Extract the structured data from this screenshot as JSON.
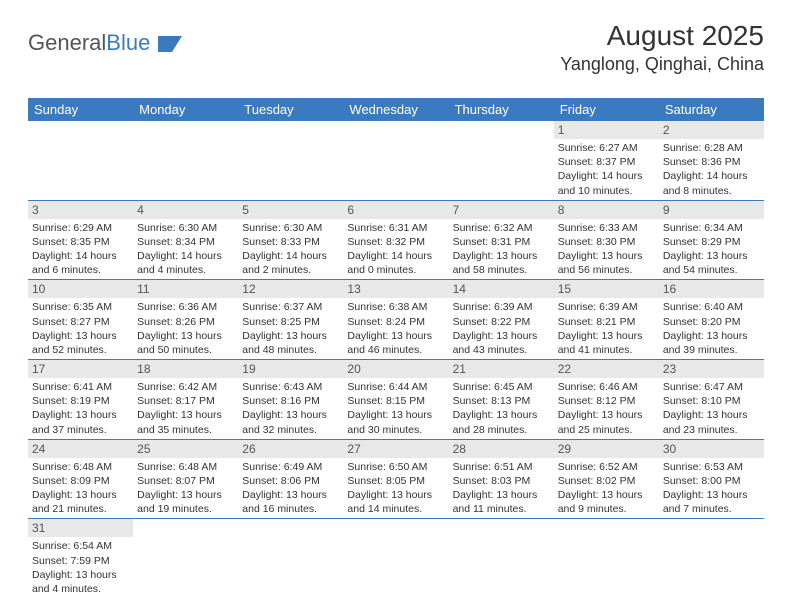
{
  "logo": {
    "text1": "General",
    "text2": "Blue"
  },
  "title": "August 2025",
  "location": "Yanglong, Qinghai, China",
  "colors": {
    "header_bg": "#3a7bbf",
    "header_fg": "#ffffff",
    "daynum_bg": "#e8e8e8",
    "border": "#3a7bbf",
    "text": "#333333"
  },
  "weekdays": [
    "Sunday",
    "Monday",
    "Tuesday",
    "Wednesday",
    "Thursday",
    "Friday",
    "Saturday"
  ],
  "weeks": [
    [
      null,
      null,
      null,
      null,
      null,
      {
        "n": "1",
        "sr": "6:27 AM",
        "ss": "8:37 PM",
        "dl": "14 hours and 10 minutes."
      },
      {
        "n": "2",
        "sr": "6:28 AM",
        "ss": "8:36 PM",
        "dl": "14 hours and 8 minutes."
      }
    ],
    [
      {
        "n": "3",
        "sr": "6:29 AM",
        "ss": "8:35 PM",
        "dl": "14 hours and 6 minutes."
      },
      {
        "n": "4",
        "sr": "6:30 AM",
        "ss": "8:34 PM",
        "dl": "14 hours and 4 minutes."
      },
      {
        "n": "5",
        "sr": "6:30 AM",
        "ss": "8:33 PM",
        "dl": "14 hours and 2 minutes."
      },
      {
        "n": "6",
        "sr": "6:31 AM",
        "ss": "8:32 PM",
        "dl": "14 hours and 0 minutes."
      },
      {
        "n": "7",
        "sr": "6:32 AM",
        "ss": "8:31 PM",
        "dl": "13 hours and 58 minutes."
      },
      {
        "n": "8",
        "sr": "6:33 AM",
        "ss": "8:30 PM",
        "dl": "13 hours and 56 minutes."
      },
      {
        "n": "9",
        "sr": "6:34 AM",
        "ss": "8:29 PM",
        "dl": "13 hours and 54 minutes."
      }
    ],
    [
      {
        "n": "10",
        "sr": "6:35 AM",
        "ss": "8:27 PM",
        "dl": "13 hours and 52 minutes."
      },
      {
        "n": "11",
        "sr": "6:36 AM",
        "ss": "8:26 PM",
        "dl": "13 hours and 50 minutes."
      },
      {
        "n": "12",
        "sr": "6:37 AM",
        "ss": "8:25 PM",
        "dl": "13 hours and 48 minutes."
      },
      {
        "n": "13",
        "sr": "6:38 AM",
        "ss": "8:24 PM",
        "dl": "13 hours and 46 minutes."
      },
      {
        "n": "14",
        "sr": "6:39 AM",
        "ss": "8:22 PM",
        "dl": "13 hours and 43 minutes."
      },
      {
        "n": "15",
        "sr": "6:39 AM",
        "ss": "8:21 PM",
        "dl": "13 hours and 41 minutes."
      },
      {
        "n": "16",
        "sr": "6:40 AM",
        "ss": "8:20 PM",
        "dl": "13 hours and 39 minutes."
      }
    ],
    [
      {
        "n": "17",
        "sr": "6:41 AM",
        "ss": "8:19 PM",
        "dl": "13 hours and 37 minutes."
      },
      {
        "n": "18",
        "sr": "6:42 AM",
        "ss": "8:17 PM",
        "dl": "13 hours and 35 minutes."
      },
      {
        "n": "19",
        "sr": "6:43 AM",
        "ss": "8:16 PM",
        "dl": "13 hours and 32 minutes."
      },
      {
        "n": "20",
        "sr": "6:44 AM",
        "ss": "8:15 PM",
        "dl": "13 hours and 30 minutes."
      },
      {
        "n": "21",
        "sr": "6:45 AM",
        "ss": "8:13 PM",
        "dl": "13 hours and 28 minutes."
      },
      {
        "n": "22",
        "sr": "6:46 AM",
        "ss": "8:12 PM",
        "dl": "13 hours and 25 minutes."
      },
      {
        "n": "23",
        "sr": "6:47 AM",
        "ss": "8:10 PM",
        "dl": "13 hours and 23 minutes."
      }
    ],
    [
      {
        "n": "24",
        "sr": "6:48 AM",
        "ss": "8:09 PM",
        "dl": "13 hours and 21 minutes."
      },
      {
        "n": "25",
        "sr": "6:48 AM",
        "ss": "8:07 PM",
        "dl": "13 hours and 19 minutes."
      },
      {
        "n": "26",
        "sr": "6:49 AM",
        "ss": "8:06 PM",
        "dl": "13 hours and 16 minutes."
      },
      {
        "n": "27",
        "sr": "6:50 AM",
        "ss": "8:05 PM",
        "dl": "13 hours and 14 minutes."
      },
      {
        "n": "28",
        "sr": "6:51 AM",
        "ss": "8:03 PM",
        "dl": "13 hours and 11 minutes."
      },
      {
        "n": "29",
        "sr": "6:52 AM",
        "ss": "8:02 PM",
        "dl": "13 hours and 9 minutes."
      },
      {
        "n": "30",
        "sr": "6:53 AM",
        "ss": "8:00 PM",
        "dl": "13 hours and 7 minutes."
      }
    ],
    [
      {
        "n": "31",
        "sr": "6:54 AM",
        "ss": "7:59 PM",
        "dl": "13 hours and 4 minutes."
      },
      null,
      null,
      null,
      null,
      null,
      null
    ]
  ],
  "labels": {
    "sunrise": "Sunrise:",
    "sunset": "Sunset:",
    "daylight": "Daylight:"
  }
}
